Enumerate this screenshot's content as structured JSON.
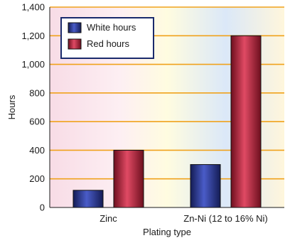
{
  "chart_data": {
    "type": "bar",
    "categories": [
      "Zinc",
      "Zn-Ni (12 to 16% Ni)"
    ],
    "series": [
      {
        "name": "White hours",
        "values": [
          120,
          300
        ],
        "color": "#2b3a8f"
      },
      {
        "name": "Red hours",
        "values": [
          400,
          1200
        ],
        "color": "#b0263c"
      }
    ],
    "xlabel": "Plating type",
    "ylabel": "Hours",
    "ylim": [
      0,
      1400
    ],
    "yticks": [
      0,
      200,
      400,
      600,
      800,
      1000,
      1200,
      1400
    ],
    "ytick_labels": [
      "0",
      "200",
      "400",
      "600",
      "800",
      "1,000",
      "1,200",
      "1,400"
    ],
    "grid": true,
    "grid_color": "#f0a21c",
    "legend_position": "top-left",
    "legend_border_color": "#1a2a6c"
  }
}
